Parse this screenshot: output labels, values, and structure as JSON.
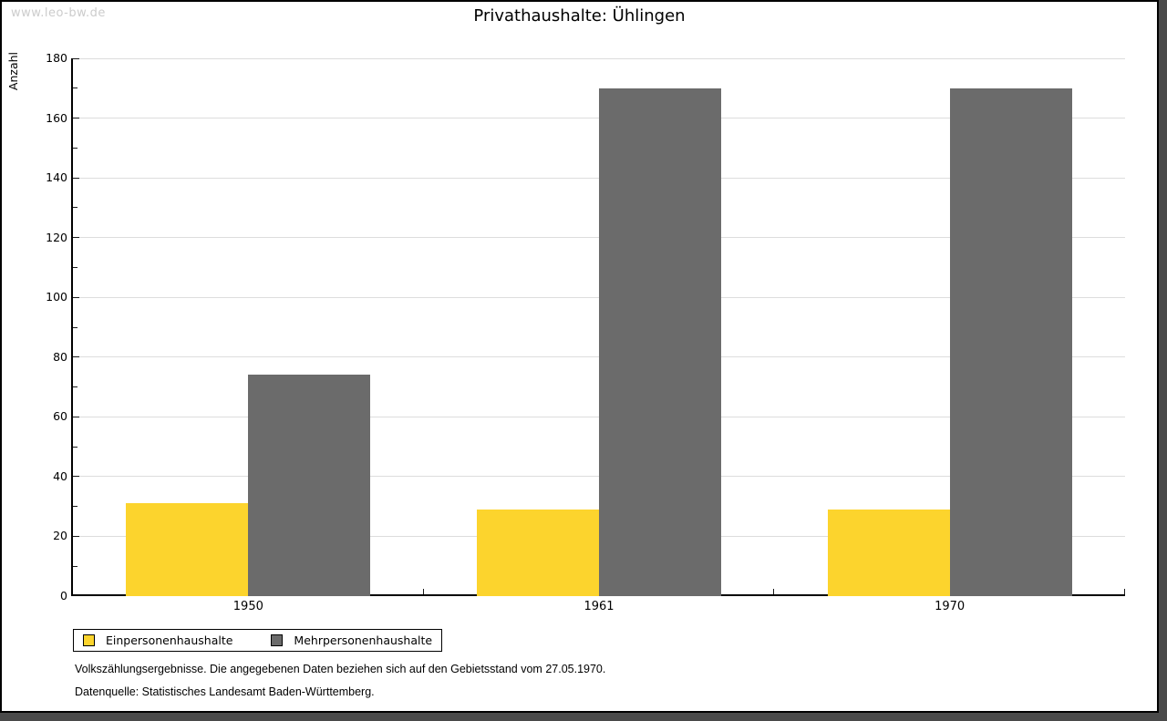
{
  "watermark": "www.leo-bw.de",
  "chart_data": {
    "type": "bar",
    "title": "Privathaushalte: Ühlingen",
    "xlabel": "",
    "ylabel": "Anzahl",
    "categories": [
      "1950",
      "1961",
      "1970"
    ],
    "series": [
      {
        "name": "Einpersonenhaushalte",
        "color": "#fcd42d",
        "values": [
          31,
          29,
          29
        ]
      },
      {
        "name": "Mehrpersonenhaushalte",
        "color": "#6b6b6b",
        "values": [
          74,
          170,
          170
        ]
      }
    ],
    "ylim": [
      0,
      180
    ],
    "ytick_step": 20,
    "minor_tick_step": 10,
    "grid": true,
    "legend_position": "bottom-left"
  },
  "footer": {
    "line1": "Volkszählungsergebnisse. Die angegebenen Daten beziehen sich auf den Gebietsstand vom 27.05.1970.",
    "line2": "Datenquelle: Statistisches Landesamt Baden-Württemberg."
  }
}
